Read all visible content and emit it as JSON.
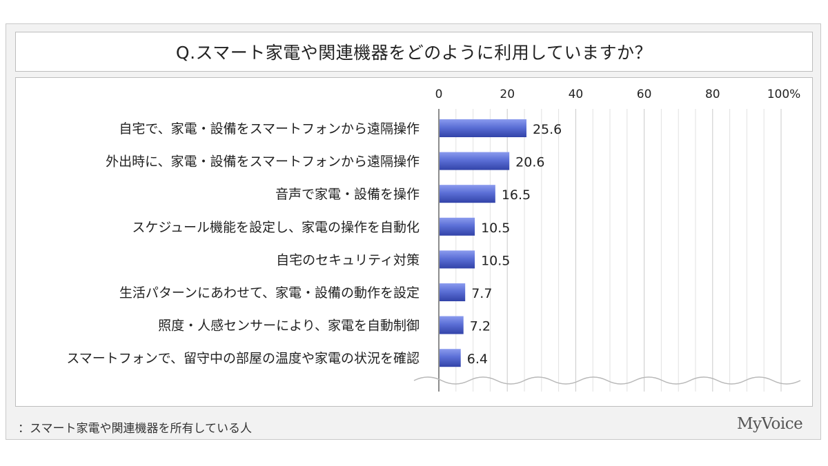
{
  "chart_data": {
    "type": "bar",
    "orientation": "horizontal",
    "title": "Q.スマート家電や関連機器をどのように利用していますか？",
    "categories": [
      "自宅で、家電・設備をスマートフォンから遠隔操作",
      "外出時に、家電・設備をスマートフォンから遠隔操作",
      "音声で家電・設備を操作",
      "スケジュール機能を設定し、家電の操作を自動化",
      "自宅のセキュリティ対策",
      "生活パターンにあわせて、家電・設備の動作を設定",
      "照度・人感センサーにより、家電を自動制御",
      "スマートフォンで、留守中の部屋の温度や家電の状況を確認"
    ],
    "values": [
      25.6,
      20.6,
      16.5,
      10.5,
      10.5,
      7.7,
      7.2,
      6.4
    ],
    "value_labels": [
      "25.6",
      "20.6",
      "16.5",
      "10.5",
      "10.5",
      "7.7",
      "7.2",
      "6.4"
    ],
    "xlim": [
      0,
      100
    ],
    "ticks": [
      0,
      20,
      40,
      60,
      80,
      100
    ],
    "tick_labels": [
      "0",
      "20",
      "40",
      "60",
      "80",
      "100%"
    ],
    "grid": true,
    "colors": {
      "bar": "#5b6fd6",
      "bar_dark": "#3243a8",
      "grid": "#c9c9c9",
      "axis": "#666666"
    }
  },
  "footnote": "：スマート家電や関連機器を所有している人",
  "brand": "MyVoice"
}
